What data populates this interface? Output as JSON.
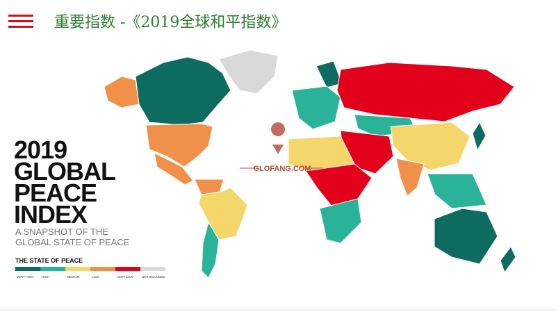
{
  "header": {
    "title": "重要指数 -《2019全球和平指数》"
  },
  "poster": {
    "title_lines": [
      "2019",
      "GLOBAL",
      "PEACE",
      "INDEX"
    ],
    "subtitle_lines": [
      "A SNAPSHOT OF THE",
      "GLOBAL STATE OF PEACE"
    ]
  },
  "legend": {
    "title": "THE STATE OF PEACE",
    "items": [
      {
        "label": "VERY HIGH",
        "color": "#0d6b5f"
      },
      {
        "label": "HIGH",
        "color": "#2bb39a"
      },
      {
        "label": "MEDIUM",
        "color": "#f5d66b"
      },
      {
        "label": "LOW",
        "color": "#f0904a"
      },
      {
        "label": "VERY LOW",
        "color": "#e3001b"
      },
      {
        "label": "NOT INCLUDED",
        "color": "#d9d9d9"
      }
    ]
  },
  "watermark": "GLOFANG.COM"
}
